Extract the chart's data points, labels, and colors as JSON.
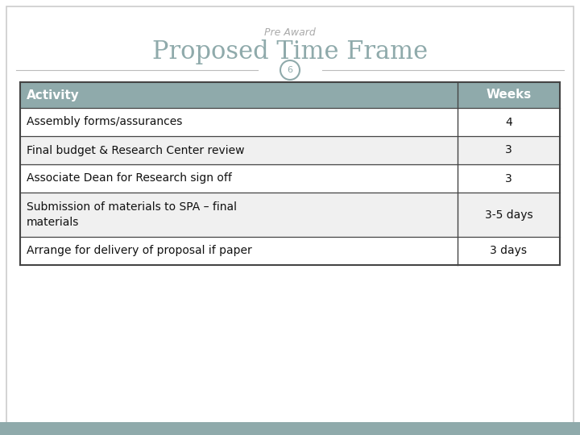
{
  "pre_award_label": "Pre Award",
  "title": "Proposed Time Frame",
  "slide_number": "6",
  "header_col1": "Activity",
  "header_col2": "Weeks",
  "rows": [
    [
      "Assembly forms/assurances",
      "4"
    ],
    [
      "Final budget & Research Center review",
      "3"
    ],
    [
      "Associate Dean for Research sign off",
      "3"
    ],
    [
      "Submission of materials to SPA – final\nmaterials",
      "3-5 days"
    ],
    [
      "Arrange for delivery of proposal if paper",
      "3 days"
    ]
  ],
  "header_bg": "#8faaab",
  "header_text_color": "#ffffff",
  "row_bg_even": "#ffffff",
  "row_bg_odd": "#f0f0f0",
  "border_color": "#444444",
  "title_color": "#8faaab",
  "pre_award_color": "#aaaaaa",
  "slide_num_color": "#8faaab",
  "slide_num_border": "#8faaab",
  "background_color": "#ffffff",
  "footer_color": "#8faaab",
  "outer_border_color": "#cccccc",
  "title_fontsize": 22,
  "pre_award_fontsize": 9,
  "header_fontsize": 11,
  "row_fontsize": 10,
  "slide_num_fontsize": 8
}
